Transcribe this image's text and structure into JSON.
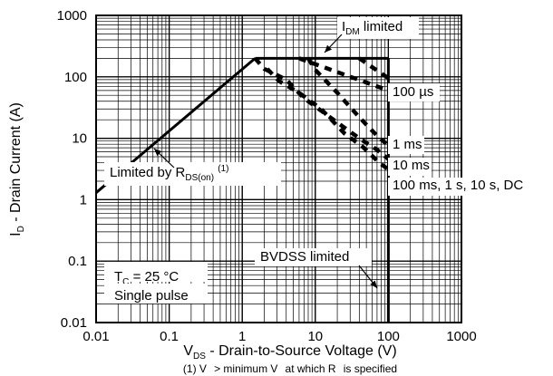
{
  "chart_data": {
    "type": "line",
    "title": "",
    "xscale": "log",
    "yscale": "log",
    "xlim": [
      0.01,
      1000
    ],
    "ylim": [
      0.01,
      1000
    ],
    "grid": "major and minor",
    "x_ticks": [
      "0.01",
      "0.1",
      "1",
      "10",
      "100",
      "1000"
    ],
    "y_ticks": [
      "0.01",
      "0.1",
      "1",
      "10",
      "100",
      "1000"
    ],
    "xlabel": {
      "main": "V",
      "sub": "DS",
      "rest": " - Drain-to-Source Voltage (V)"
    },
    "ylabel": {
      "main": "I",
      "sub": "D",
      "rest": " - Drain Current (A)"
    },
    "footnote": "(1) V   > minimum V   at which R   is specified",
    "series": [
      {
        "style": "solid",
        "points": [
          [
            0.01,
            1.3
          ],
          [
            1.5,
            200
          ]
        ]
      },
      {
        "style": "solid",
        "points": [
          [
            1.5,
            200
          ],
          [
            100,
            200
          ]
        ]
      },
      {
        "style": "solid",
        "points": [
          [
            100,
            200
          ],
          [
            100,
            0.01
          ]
        ]
      },
      {
        "style": "dashed",
        "points": [
          [
            1.5,
            200
          ],
          [
            2,
            135
          ],
          [
            4,
            90
          ],
          [
            7,
            45
          ],
          [
            20,
            18
          ],
          [
            40,
            10
          ],
          [
            70,
            6.5
          ],
          [
            100,
            4.6
          ]
        ]
      },
      {
        "style": "dashed",
        "points": [
          [
            2.2,
            135
          ],
          [
            3.2,
            85
          ],
          [
            6,
            55
          ],
          [
            12,
            30
          ],
          [
            25,
            12
          ],
          [
            45,
            7.2
          ],
          [
            75,
            4
          ],
          [
            100,
            3.1
          ]
        ]
      },
      {
        "style": "dashed",
        "points": [
          [
            6,
            200
          ],
          [
            100,
            60
          ]
        ]
      },
      {
        "style": "dashed",
        "points": [
          [
            8,
            200
          ],
          [
            10,
            130
          ],
          [
            20,
            55
          ],
          [
            40,
            22
          ],
          [
            70,
            11
          ],
          [
            100,
            7.6
          ]
        ]
      },
      {
        "style": "dashed",
        "points": [
          [
            40,
            200
          ],
          [
            100,
            95
          ]
        ]
      }
    ],
    "annotations": [
      {
        "id": "idm",
        "main": "I",
        "sub": "DM",
        "rest": " limited"
      },
      {
        "id": "t100us",
        "text": "100 µs"
      },
      {
        "id": "t1ms",
        "text": "1 ms"
      },
      {
        "id": "t10ms",
        "text": "10 ms"
      },
      {
        "id": "t100ms",
        "text": "100 ms, 1 s, 10 s, DC"
      },
      {
        "id": "rds",
        "main": "Limited by R",
        "sub": "DS(on)",
        "rest": " ",
        "sup": "(1)"
      },
      {
        "id": "bvdss",
        "text": "BVDSS limited"
      },
      {
        "id": "tc",
        "main": "T",
        "sub": "C",
        "rest": " = 25 °C"
      },
      {
        "id": "pulse",
        "text": "Single pulse"
      }
    ]
  }
}
